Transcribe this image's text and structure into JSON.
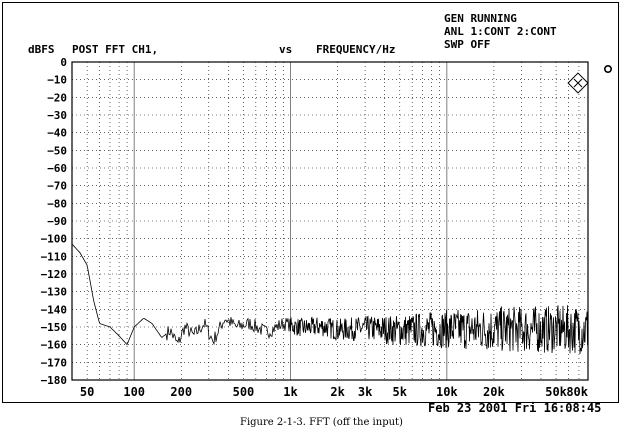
{
  "status": {
    "line1": "GEN RUNNING",
    "line2": "ANL 1:CONT 2:CONT",
    "line3": "SWP OFF"
  },
  "header": {
    "units": "dBFS",
    "left": "POST FFT CH1,",
    "vs": "vs",
    "right": "FREQUENCY/Hz"
  },
  "timestamp": "Feb 23 2001 Fri 16:08:45",
  "caption": "Figure 2-1-3. FFT (off the input)",
  "icons": {
    "logo": "rs-diamond-logo",
    "knob": "circle-marker-icon"
  },
  "chart_data": {
    "type": "line",
    "title": "POST FFT CH1,",
    "xlabel": "FREQUENCY/Hz",
    "ylabel": "dBFS",
    "x_scale": "log",
    "xlim": [
      40,
      80000
    ],
    "ylim": [
      -180,
      0
    ],
    "grid": true,
    "y_ticks": [
      0,
      -10,
      -20,
      -30,
      -40,
      -50,
      -60,
      -70,
      -80,
      -90,
      -100,
      -110,
      -120,
      -130,
      -140,
      -150,
      -160,
      -170,
      -180
    ],
    "x_tick_values": [
      50,
      100,
      200,
      500,
      1000,
      2000,
      3000,
      5000,
      10000,
      20000,
      50000,
      80000
    ],
    "x_tick_labels": [
      "50",
      "100",
      "200",
      "500",
      "1k",
      "2k",
      "3k",
      "5k",
      "10k",
      "20k",
      "50k",
      "80k"
    ],
    "series": [
      {
        "color": "#000000",
        "x": [
          40,
          45,
          50,
          55,
          60,
          70,
          80,
          90,
          100,
          115,
          130,
          150,
          170,
          190,
          210,
          240,
          280,
          320,
          380,
          450,
          550,
          700,
          900,
          1200,
          1600,
          2000,
          3000,
          5000,
          10000,
          20000,
          50000,
          80000
        ],
        "y": [
          -103,
          -108,
          -115,
          -135,
          -148,
          -150,
          -155,
          -160,
          -150,
          -145,
          -148,
          -156,
          -152,
          -160,
          -150,
          -155,
          -148,
          -158,
          -145,
          -150,
          -148,
          -153,
          -148,
          -150,
          -149,
          -151,
          -150,
          -151,
          -150,
          -150,
          -150,
          -150
        ],
        "noise_band": {
          "from": 1000,
          "points": [
            [
              1000,
              10
            ],
            [
              3000,
              14
            ],
            [
              5000,
              18
            ],
            [
              10000,
              22
            ],
            [
              20000,
              26
            ],
            [
              80000,
              28
            ]
          ]
        }
      }
    ]
  }
}
